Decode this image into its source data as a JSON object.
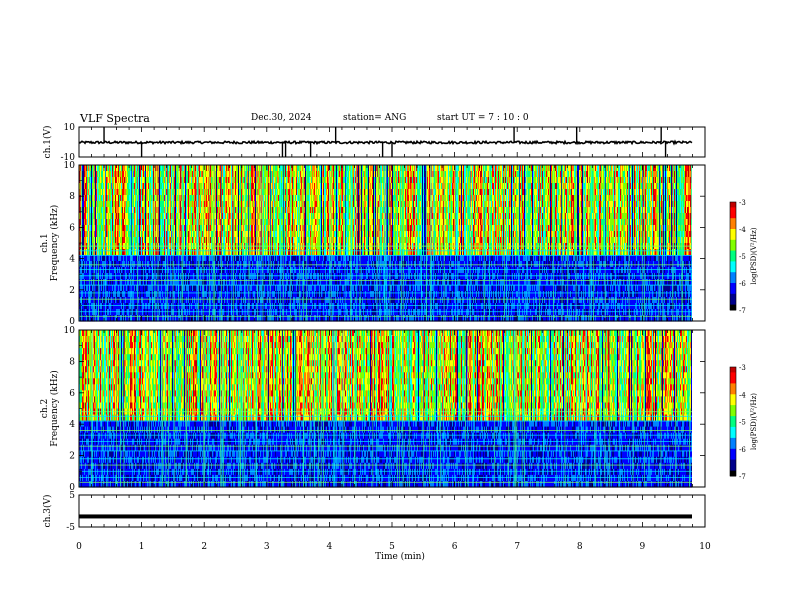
{
  "header": {
    "title": "VLF Spectra",
    "date": "Dec.30, 2024",
    "station": "station= ANG",
    "start": "start  UT =   7 : 10 : 0"
  },
  "chart_data": [
    {
      "type": "line",
      "panel": "ch1-waveform",
      "ylabel": "ch.1(V)",
      "yticks": [
        "10",
        "-10"
      ],
      "ylim": [
        -10,
        10
      ],
      "xlim": [
        0,
        10
      ],
      "note_values": "baseline near 0 V with spikes up to ~10 V",
      "spikes_x_min": [
        0.4,
        1.0,
        3.25,
        3.3,
        3.7,
        4.1,
        4.85,
        5.0,
        6.95,
        7.95,
        9.3,
        9.37
      ]
    },
    {
      "type": "heatmap",
      "panel": "ch1-spectrogram",
      "ylabel": "ch.1\nFrequency  (kHz)",
      "yticks": [
        "0",
        "2",
        "4",
        "6",
        "8",
        "10"
      ],
      "ylim": [
        0,
        10
      ],
      "xlim": [
        0,
        9.8
      ],
      "colorbar": {
        "label": "log(PSD)(V²/Hz)",
        "ticks": [
          "-3",
          "-4",
          "-5",
          "-6",
          "-7"
        ],
        "range": [
          -7,
          -3
        ]
      }
    },
    {
      "type": "heatmap",
      "panel": "ch2-spectrogram",
      "ylabel": "ch.2\nFrequency  (kHz)",
      "yticks": [
        "0",
        "2",
        "4",
        "6",
        "8",
        "10"
      ],
      "ylim": [
        0,
        10
      ],
      "xlim": [
        0,
        9.8
      ],
      "colorbar": {
        "label": "log(PSD)(V²/Hz)",
        "ticks": [
          "-3",
          "-4",
          "-5",
          "-6",
          "-7"
        ],
        "range": [
          -7,
          -3
        ]
      }
    },
    {
      "type": "line",
      "panel": "ch3-waveform",
      "ylabel": "ch.3(V)",
      "yticks": [
        "5",
        "-5"
      ],
      "ylim": [
        -5,
        5
      ],
      "xlim": [
        0,
        9.8
      ],
      "values_note": "flat line at about -1.7 V"
    }
  ],
  "xaxis": {
    "label": "Time  (min)",
    "ticks": [
      "0",
      "1",
      "2",
      "3",
      "4",
      "5",
      "6",
      "7",
      "8",
      "9",
      "10"
    ],
    "range": [
      0,
      10
    ]
  },
  "colors": {
    "colormap": [
      "#000000",
      "#00008b",
      "#0000ff",
      "#0080ff",
      "#00ffff",
      "#00ff80",
      "#80ff00",
      "#ffff00",
      "#ff8000",
      "#ff0000",
      "#c00000"
    ]
  }
}
